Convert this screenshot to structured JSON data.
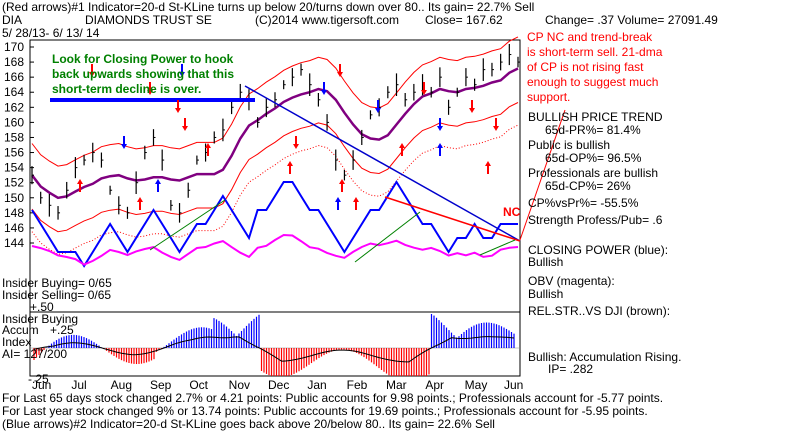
{
  "header": {
    "line1": "(Red arrows)#1 Indicator=20-d St-KLine turns up below 20/turns down over 80.. Its gain= 22.7% Sell",
    "ticker": "DIA",
    "name": "DIAMONDS TRUST SE",
    "copyright": "(C)2014 www.tigersoft.com",
    "close": "Close=  167.62",
    "change": "Change= .37 Volume= 27091.49",
    "date_range": "5/ 28/13- 6/ 13/ 14"
  },
  "annotations": {
    "green_note": [
      "Look for Closing Power to hook",
      "back upwards showing that this",
      "short-term decline is over."
    ],
    "red_note": [
      "CP NC and trend-break",
      "is short-term sell. 21-dma",
      "of CP is not rising fast",
      "enough to suggest much",
      "support."
    ],
    "nc_label": "NC"
  },
  "right_panel": {
    "bullish_trend": "BULLISH PRICE TREND",
    "pr": "65d-PR%= 81.4%",
    "public_bullish": "Public is bullish",
    "op": "65d-OP%= 96.5%",
    "pros_bullish": "Professionals are bullish",
    "cp": "65d-CP%= 26%",
    "cpvspr": "CP%vsPr%= -55.5%",
    "strength": "Strength Profess/Pub= .6",
    "closing_power": "CLOSING POWER (blue):",
    "cp_status": "Bullish",
    "obv": "OBV (magenta):",
    "obv_status": "Bullish",
    "relstr": "REL.STR..VS DJI (brown):",
    "accum": "Bullish: Accumulation Rising.",
    "ip": "IP=  .282"
  },
  "left_panel": {
    "insider_buying": "Insider Buying= 0/65",
    "insider_selling": "Insider Selling= 0/65",
    "ind_top": "+.50",
    "insider_buying2": "Insider Buying",
    "accum_index": "Accum",
    "plus25": "+.25",
    "index": "Index",
    "ai": "AI= 127/200",
    "minus25": "-.25"
  },
  "footer": {
    "line1": "For Last 65 days stock changed  2.7% or  4.21 points:  Public accounts for  9.98 points.;  Professionals account for -5.77 points.",
    "line2": "For Last year stock changed  9% or  13.74 points:  Public accounts for  19.69 points.;  Professionals account for -5.95 points.",
    "line3": "(Blue arrows)#2 Indicator=20-d St-KLine goes back above 20/below 80.. Its gain= 22.6% Sell"
  },
  "colors": {
    "price": "#000000",
    "closing_power": "#0000ff",
    "obv": "#ff00ff",
    "band": "#ff0000",
    "ma": "#800080",
    "trend_green": "#008000",
    "trend_red": "#ff0000",
    "accum_pos": "#0000ff",
    "accum_neg": "#ff0000",
    "annotation_green": "#008000"
  },
  "chart_data": {
    "type": "line",
    "ylim": [
      142,
      171
    ],
    "y_ticks": [
      "170",
      "168",
      "166",
      "164",
      "162",
      "160",
      "158",
      "156",
      "154",
      "152",
      "150",
      "148",
      "146",
      "144"
    ],
    "x_ticks": [
      "Jun",
      "Jul",
      "Aug",
      "Sep",
      "Oct",
      "Nov",
      "Dec",
      "Jan",
      "Feb",
      "Mar",
      "Apr",
      "May",
      "Jun"
    ],
    "series": [
      {
        "values": [
          153,
          150,
          149,
          148,
          151,
          154,
          155,
          156,
          155,
          151,
          149,
          148,
          152,
          156,
          158,
          155,
          149,
          148,
          151,
          155,
          156,
          158,
          159,
          162,
          164,
          163,
          160,
          162,
          163,
          165,
          166,
          167,
          165,
          163,
          160,
          155,
          153,
          155,
          158,
          161,
          162,
          164,
          165,
          163,
          164,
          165,
          164,
          166,
          162,
          164,
          166,
          165,
          167,
          167,
          168,
          169,
          168
        ]
      },
      {
        "values": [
          147,
          146,
          145,
          144,
          144,
          144,
          143,
          144,
          145,
          146,
          145,
          144,
          145,
          146,
          147,
          146,
          145,
          144,
          145,
          146,
          146,
          147,
          148,
          147,
          146,
          145,
          147,
          147,
          148,
          149,
          149,
          148,
          147,
          147,
          146,
          145,
          144,
          145,
          146,
          147,
          147,
          148,
          149,
          148,
          147,
          146,
          146,
          145,
          144,
          145,
          145,
          146,
          145,
          145,
          146,
          146,
          146
        ]
      }
    ]
  }
}
